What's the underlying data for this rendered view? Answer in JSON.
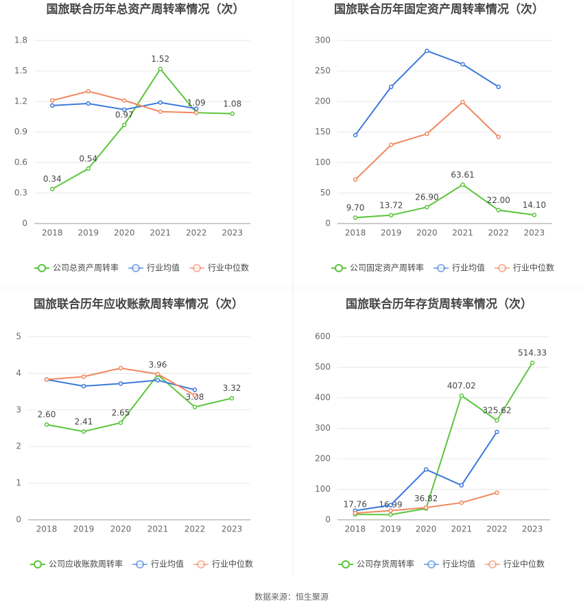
{
  "chart_data": [
    {
      "type": "line",
      "title": "国旅联合历年总资产周转率情况（次）",
      "categories": [
        "2018",
        "2019",
        "2020",
        "2021",
        "2022",
        "2023"
      ],
      "series": [
        {
          "name": "公司总资产周转率",
          "color": "#5ac53a",
          "values": [
            0.34,
            0.54,
            0.97,
            1.52,
            1.09,
            1.08
          ],
          "labels": true
        },
        {
          "name": "行业均值",
          "color": "#3b78db",
          "values": [
            1.16,
            1.18,
            1.12,
            1.19,
            1.13,
            null
          ]
        },
        {
          "name": "行业中位数",
          "color": "#f0875e",
          "values": [
            1.21,
            1.3,
            1.21,
            1.1,
            1.09,
            null
          ]
        }
      ],
      "ylim": [
        0,
        1.8
      ],
      "yticks": [
        0,
        0.3,
        0.6,
        0.9,
        1.2,
        1.5,
        1.8
      ],
      "grid": true
    },
    {
      "type": "line",
      "title": "国旅联合历年固定资产周转率情况（次）",
      "categories": [
        "2018",
        "2019",
        "2020",
        "2021",
        "2022",
        "2023"
      ],
      "series": [
        {
          "name": "公司固定资产周转率",
          "color": "#5ac53a",
          "values": [
            9.7,
            13.72,
            26.9,
            63.61,
            22.0,
            14.1
          ],
          "value_labels": [
            "9.70",
            "13.72",
            "26.90",
            "63.61",
            "22.00",
            "14.10"
          ]
        },
        {
          "name": "行业均值",
          "color": "#3b78db",
          "values": [
            145,
            224,
            283,
            261,
            224,
            null
          ]
        },
        {
          "name": "行业中位数",
          "color": "#f0875e",
          "values": [
            72,
            129,
            147,
            199,
            142,
            null
          ]
        }
      ],
      "ylim": [
        0,
        300
      ],
      "yticks": [
        0,
        50,
        100,
        150,
        200,
        250,
        300
      ],
      "grid": true
    },
    {
      "type": "line",
      "title": "国旅联合历年应收账款周转率情况（次）",
      "categories": [
        "2018",
        "2019",
        "2020",
        "2021",
        "2022",
        "2023"
      ],
      "series": [
        {
          "name": "公司应收账款周转率",
          "color": "#5ac53a",
          "values": [
            2.6,
            2.41,
            2.65,
            3.96,
            3.08,
            3.32
          ],
          "value_labels": [
            "2.60",
            "2.41",
            "2.65",
            "3.96",
            "3.08",
            "3.32"
          ]
        },
        {
          "name": "行业均值",
          "color": "#3b78db",
          "values": [
            3.83,
            3.65,
            3.72,
            3.81,
            3.55,
            null
          ]
        },
        {
          "name": "行业中位数",
          "color": "#f0875e",
          "values": [
            3.83,
            3.91,
            4.14,
            3.98,
            3.4,
            null
          ]
        }
      ],
      "ylim": [
        0,
        5
      ],
      "yticks": [
        0,
        1,
        2,
        3,
        4,
        5
      ],
      "grid": true
    },
    {
      "type": "line",
      "title": "国旅联合历年存货周转率情况（次）",
      "categories": [
        "2018",
        "2019",
        "2020",
        "2021",
        "2022",
        "2023"
      ],
      "series": [
        {
          "name": "公司存货周转率",
          "color": "#5ac53a",
          "values": [
            17.76,
            16.99,
            36.82,
            407.02,
            325.62,
            514.33
          ],
          "labels": true
        },
        {
          "name": "行业均值",
          "color": "#3b78db",
          "values": [
            30,
            48,
            165,
            113,
            288,
            null
          ]
        },
        {
          "name": "行业中位数",
          "color": "#f0875e",
          "values": [
            22,
            30,
            40,
            56,
            89,
            null
          ]
        }
      ],
      "ylim": [
        0,
        600
      ],
      "yticks": [
        0,
        100,
        200,
        300,
        400,
        500,
        600
      ],
      "grid": true
    }
  ],
  "source": "数据来源：恒生聚源"
}
